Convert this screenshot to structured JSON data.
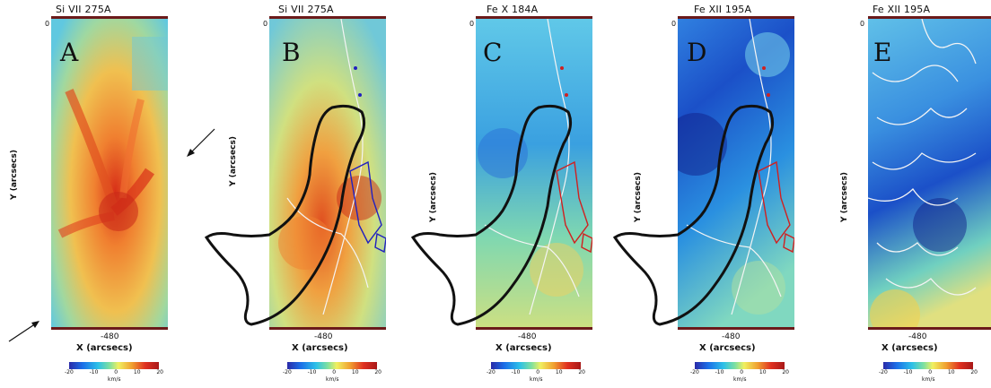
{
  "panels": [
    {
      "id": "A",
      "title": "Si VII 275A",
      "letter": "A",
      "y_origin": "0",
      "ylabel": "Y (arcsecs)",
      "xtick": "-480",
      "xlabel": "X (arcsecs)",
      "cbar_ticks": [
        "-20",
        "-10",
        "0",
        "10",
        "20"
      ],
      "cbar_unit": "km/s",
      "dominant": "warm"
    },
    {
      "id": "B",
      "title": "Si VII 275A",
      "letter": "B",
      "y_origin": "0",
      "ylabel": "Y (arcsecs)",
      "xtick": "-480",
      "xlabel": "X (arcsecs)",
      "cbar_ticks": [
        "-20",
        "-10",
        "0",
        "10",
        "20"
      ],
      "cbar_unit": "km/s",
      "dominant": "warm"
    },
    {
      "id": "C",
      "title": "Fe X 184A",
      "letter": "C",
      "y_origin": "0",
      "ylabel": "Y (arcsecs)",
      "xtick": "-480",
      "xlabel": "X (arcsecs)",
      "cbar_ticks": [
        "-20",
        "-10",
        "0",
        "10",
        "20"
      ],
      "cbar_unit": "km/s",
      "dominant": "mixed"
    },
    {
      "id": "D",
      "title": "Fe XII 195A",
      "letter": "D",
      "y_origin": "0",
      "ylabel": "Y (arcsecs)",
      "xtick": "-480",
      "xlabel": "X (arcsecs)",
      "cbar_ticks": [
        "-20",
        "-10",
        "0",
        "10",
        "20"
      ],
      "cbar_unit": "km/s",
      "dominant": "cool"
    },
    {
      "id": "E",
      "title": "Fe XII 195A",
      "letter": "E",
      "y_origin": "0",
      "ylabel": "Y (arcsecs)",
      "xtick": "-480",
      "xlabel": "X (arcsecs)",
      "cbar_ticks": [
        "-20",
        "-10",
        "0",
        "10",
        "20"
      ],
      "cbar_unit": "km/s",
      "dominant": "cool-contour"
    }
  ],
  "colors": {
    "frame": "#6b1a1a",
    "black_contour": "#111111",
    "white_contour": "#f4f4f4",
    "blue_contour": "#2020c0",
    "red_contour": "#d02020"
  },
  "icons": [
    "arrow-icon",
    "arrow-icon"
  ]
}
